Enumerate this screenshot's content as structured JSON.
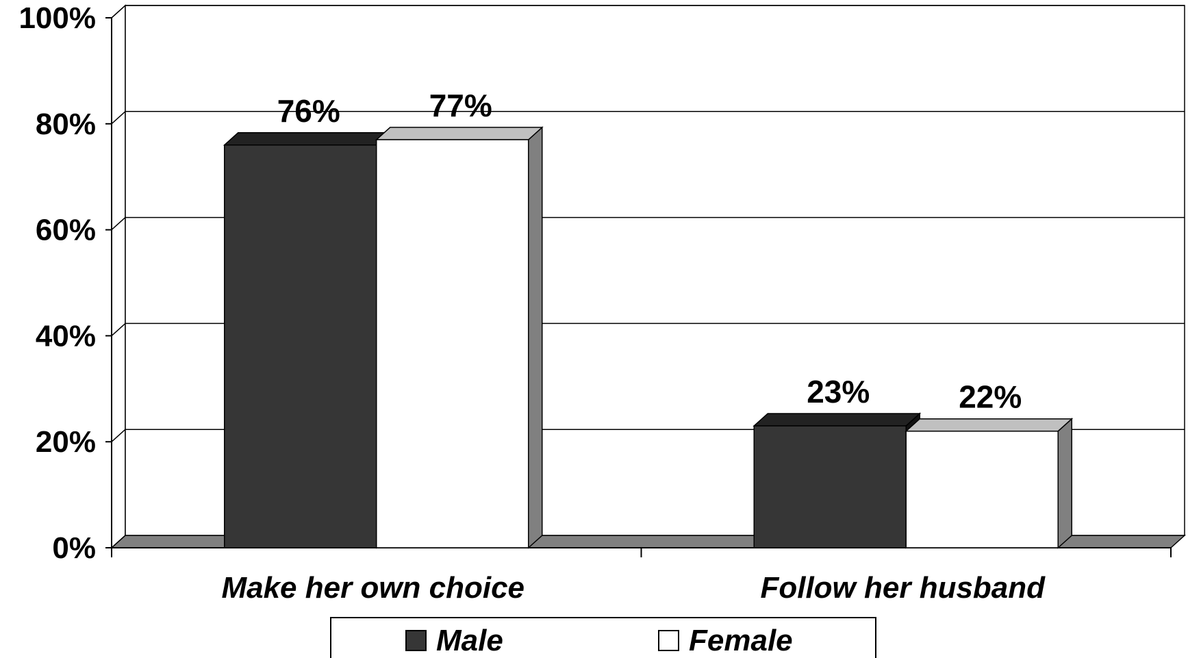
{
  "chart_data": {
    "type": "bar",
    "categories": [
      "Make her own choice",
      "Follow her husband"
    ],
    "series": [
      {
        "name": "Male",
        "values": [
          76,
          23
        ],
        "data_labels": [
          "76%",
          "23%"
        ],
        "color": "#363636"
      },
      {
        "name": "Female",
        "values": [
          77,
          22
        ],
        "data_labels": [
          "77%",
          "22%"
        ],
        "color": "#ffffff"
      }
    ],
    "ylim": [
      0,
      100
    ],
    "yticks": [
      {
        "value": 0,
        "label": "0%"
      },
      {
        "value": 20,
        "label": "20%"
      },
      {
        "value": 40,
        "label": "40%"
      },
      {
        "value": 60,
        "label": "60%"
      },
      {
        "value": 80,
        "label": "80%"
      },
      {
        "value": 100,
        "label": "100%"
      }
    ],
    "grid": true,
    "legend_position": "bottom",
    "style": "3d"
  }
}
